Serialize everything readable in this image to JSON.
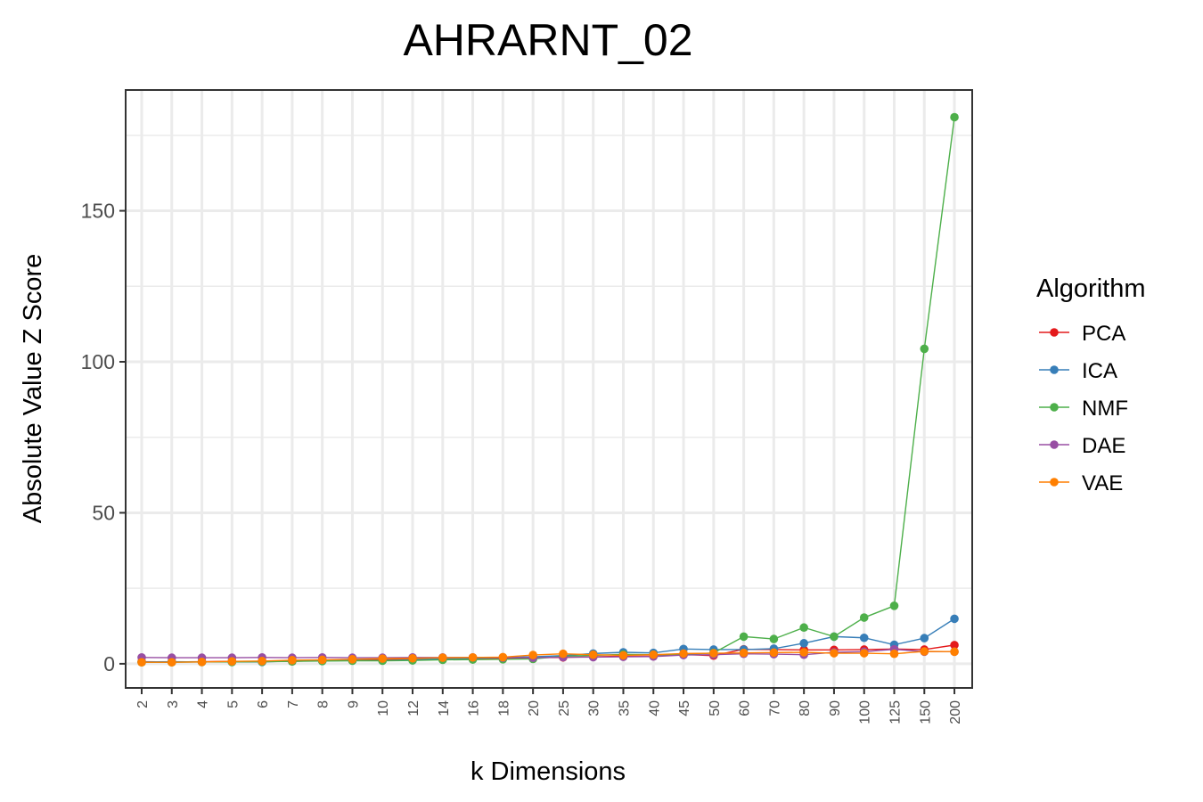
{
  "chart_data": {
    "type": "line",
    "title": "AHRARNT_02",
    "xlabel": "k Dimensions",
    "ylabel": "Absolute Value Z Score",
    "categories": [
      "2",
      "3",
      "4",
      "5",
      "6",
      "7",
      "8",
      "9",
      "10",
      "12",
      "14",
      "16",
      "18",
      "20",
      "25",
      "30",
      "35",
      "40",
      "45",
      "50",
      "60",
      "70",
      "80",
      "90",
      "100",
      "125",
      "150",
      "200"
    ],
    "yticks": [
      0,
      50,
      100,
      150
    ],
    "ylim": [
      -8,
      190
    ],
    "grid": true,
    "legend_title": "Algorithm",
    "legend_position": "right",
    "series": [
      {
        "name": "PCA",
        "color": "#E41A1C",
        "values": [
          0.7,
          0.6,
          0.7,
          0.8,
          0.8,
          0.8,
          1.1,
          1.2,
          1.3,
          1.5,
          1.6,
          1.7,
          1.8,
          2.0,
          2.1,
          2.3,
          2.5,
          2.5,
          3.1,
          2.7,
          4.8,
          4.7,
          4.6,
          4.6,
          4.7,
          4.9,
          4.7,
          6.2
        ]
      },
      {
        "name": "ICA",
        "color": "#377EB8",
        "values": [
          0.6,
          0.7,
          0.6,
          0.6,
          0.6,
          0.9,
          1.0,
          1.1,
          1.1,
          1.3,
          1.7,
          1.8,
          2.1,
          2.3,
          2.7,
          3.4,
          3.8,
          3.6,
          4.9,
          4.7,
          4.7,
          5.0,
          6.8,
          9.0,
          8.6,
          6.3,
          8.5,
          14.9
        ]
      },
      {
        "name": "NMF",
        "color": "#4DAF4A",
        "values": [
          0.5,
          0.5,
          0.6,
          0.6,
          0.7,
          0.8,
          0.9,
          1.0,
          1.0,
          1.1,
          1.3,
          1.4,
          1.5,
          1.6,
          2.5,
          2.8,
          3.1,
          3.0,
          3.0,
          3.6,
          9.0,
          8.2,
          12.0,
          9.0,
          15.3,
          19.2,
          104.3,
          181.0
        ]
      },
      {
        "name": "DAE",
        "color": "#984EA3",
        "values": [
          2.1,
          2.0,
          2.0,
          2.0,
          2.1,
          2.0,
          2.1,
          2.0,
          2.0,
          2.1,
          2.1,
          2.1,
          2.0,
          2.0,
          2.2,
          2.2,
          2.3,
          2.4,
          2.9,
          3.0,
          3.3,
          3.2,
          3.0,
          3.8,
          4.0,
          4.8,
          4.0,
          4.0
        ]
      },
      {
        "name": "VAE",
        "color": "#FF7F00",
        "values": [
          0.5,
          0.5,
          0.6,
          0.8,
          0.9,
          1.2,
          1.3,
          1.5,
          1.7,
          1.8,
          2.0,
          2.1,
          2.2,
          2.9,
          3.3,
          3.0,
          2.8,
          3.0,
          3.4,
          3.5,
          3.6,
          3.7,
          3.8,
          3.5,
          3.5,
          3.3,
          4.1,
          4.0
        ]
      }
    ]
  }
}
